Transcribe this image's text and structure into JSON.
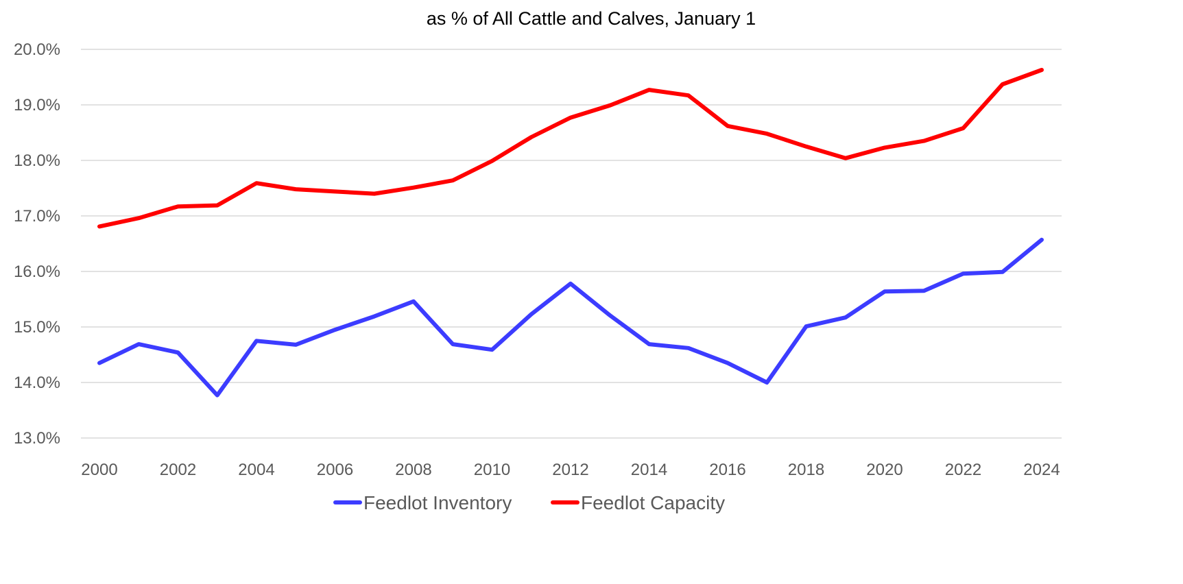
{
  "chart_data": {
    "type": "line",
    "title": "as % of All Cattle and Calves, January 1",
    "xlabel": "",
    "ylabel": "",
    "x": [
      2000,
      2001,
      2002,
      2003,
      2004,
      2005,
      2006,
      2007,
      2008,
      2009,
      2010,
      2011,
      2012,
      2013,
      2014,
      2015,
      2016,
      2017,
      2018,
      2019,
      2020,
      2021,
      2022,
      2023,
      2024
    ],
    "x_ticks": [
      "2000",
      "2002",
      "2004",
      "2006",
      "2008",
      "2010",
      "2012",
      "2014",
      "2016",
      "2018",
      "2020",
      "2022",
      "2024"
    ],
    "y_ticks": [
      "13.0%",
      "14.0%",
      "15.0%",
      "16.0%",
      "17.0%",
      "18.0%",
      "19.0%",
      "20.0%"
    ],
    "ylim": [
      13,
      20
    ],
    "grid": "horizontal",
    "legend_position": "bottom",
    "series": [
      {
        "name": "Feedlot Inventory",
        "color": "#3c3cff",
        "values": [
          14.35,
          14.69,
          14.54,
          13.77,
          14.75,
          14.68,
          14.95,
          15.19,
          15.46,
          14.69,
          14.59,
          15.23,
          15.78,
          15.21,
          14.69,
          14.62,
          14.35,
          14.0,
          15.01,
          15.17,
          15.64,
          15.65,
          15.96,
          15.99,
          16.57
        ]
      },
      {
        "name": "Feedlot Capacity",
        "color": "#ff0000",
        "values": [
          16.81,
          16.96,
          17.17,
          17.19,
          17.59,
          17.48,
          17.44,
          17.4,
          17.51,
          17.64,
          17.99,
          18.42,
          18.77,
          18.99,
          19.27,
          19.17,
          18.62,
          18.48,
          18.25,
          18.04,
          18.23,
          18.35,
          18.58,
          19.37,
          19.63
        ]
      }
    ]
  }
}
